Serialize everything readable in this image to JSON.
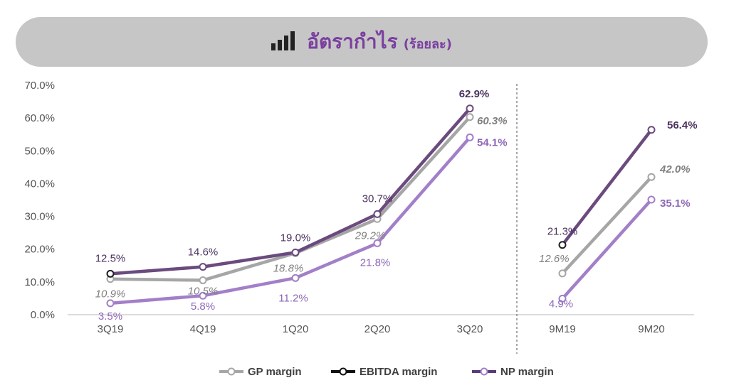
{
  "banner": {
    "title": "อัตรากำไร",
    "subtitle": "(ร้อยละ)",
    "icon": "bar-signal-icon"
  },
  "colors": {
    "gp": "#a6a6a6",
    "ebitda": "#6b4a7e",
    "np": "#a27fc8",
    "banner_bg": "#c6c6c6",
    "title": "#7b3fa0",
    "axis_text": "#555555",
    "gp_label": "#7f7f7f",
    "ebitda_label": "#4b3260",
    "np_label": "#8e66b8"
  },
  "chart_data": {
    "type": "line",
    "title": "อัตรากำไร (ร้อยละ)",
    "ylim": [
      0,
      70
    ],
    "yticks": [
      "0.0%",
      "10.0%",
      "20.0%",
      "30.0%",
      "40.0%",
      "50.0%",
      "60.0%",
      "70.0%"
    ],
    "categories": [
      "3Q19",
      "4Q19",
      "1Q20",
      "2Q20",
      "3Q20",
      "9M19",
      "9M20"
    ],
    "groups": [
      {
        "name": "quarterly",
        "indices": [
          0,
          1,
          2,
          3,
          4
        ]
      },
      {
        "name": "nine-month",
        "indices": [
          5,
          6
        ]
      }
    ],
    "series": [
      {
        "name": "GP margin",
        "key": "gp",
        "values": [
          10.9,
          10.5,
          18.8,
          29.2,
          60.3,
          12.6,
          42.0
        ],
        "labels": [
          "10.9%",
          "10.5%",
          "18.8%",
          "29.2%",
          "60.3%",
          "12.6%",
          "42.0%"
        ]
      },
      {
        "name": "EBITDA margin",
        "key": "ebitda",
        "values": [
          12.5,
          14.6,
          19.0,
          30.7,
          62.9,
          21.3,
          56.4
        ],
        "labels": [
          "12.5%",
          "14.6%",
          "19.0%",
          "30.7%",
          "62.9%",
          "21.3%",
          "56.4%"
        ]
      },
      {
        "name": "NP margin",
        "key": "np",
        "values": [
          3.5,
          5.8,
          11.2,
          21.8,
          54.1,
          4.9,
          35.1
        ],
        "labels": [
          "3.5%",
          "5.8%",
          "11.2%",
          "21.8%",
          "54.1%",
          "4.9%",
          "35.1%"
        ]
      }
    ],
    "legend": [
      "GP margin",
      "EBITDA margin",
      "NP margin"
    ],
    "legend_position": "bottom-right"
  }
}
